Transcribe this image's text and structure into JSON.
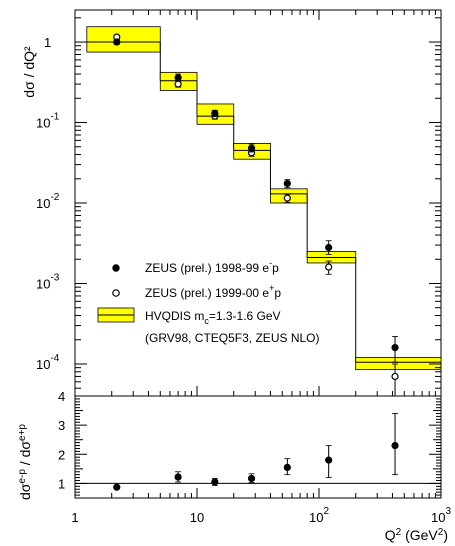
{
  "chart_data": [
    {
      "type": "scatter",
      "title": "",
      "ylabel": "dσ / dQ²",
      "xlabel": "Q² (GeV²)",
      "xscale": "log",
      "yscale": "log",
      "xlim": [
        1,
        1000
      ],
      "ylim": [
        4e-05,
        2.5
      ],
      "y_tick_labels": [
        {
          "value": 1,
          "mantissa": "1",
          "exp": ""
        },
        {
          "value": 0.1,
          "mantissa": "10",
          "exp": "-1"
        },
        {
          "value": 0.01,
          "mantissa": "10",
          "exp": "-2"
        },
        {
          "value": 0.001,
          "mantissa": "10",
          "exp": "-3"
        },
        {
          "value": 0.0001,
          "mantissa": "10",
          "exp": "-4"
        }
      ],
      "legend_position": "lower-left",
      "legend": [
        {
          "marker": "filled-circle",
          "text": "ZEUS (prel.) 1998-99 e",
          "sup": "-",
          "tail": "p"
        },
        {
          "marker": "open-circle",
          "text": "ZEUS (prel.) 1999-00 e",
          "sup": "+",
          "tail": "p"
        },
        {
          "marker": "yellow-band",
          "text": "HVQDIS m",
          "sub": "c",
          "tail": "=1.3-1.6 GeV"
        },
        {
          "marker": "none",
          "text": "(GRV98, CTEQ5F3, ZEUS NLO)"
        }
      ],
      "theory_band": {
        "name": "HVQDIS",
        "bins": [
          {
            "x_lo": 1.25,
            "x_hi": 5,
            "central": 1.0,
            "lo": 0.75,
            "hi": 1.55
          },
          {
            "x_lo": 5,
            "x_hi": 10,
            "central": 0.33,
            "lo": 0.25,
            "hi": 0.42
          },
          {
            "x_lo": 10,
            "x_hi": 20,
            "central": 0.12,
            "lo": 0.095,
            "hi": 0.17
          },
          {
            "x_lo": 20,
            "x_hi": 40,
            "central": 0.045,
            "lo": 0.035,
            "hi": 0.055
          },
          {
            "x_lo": 40,
            "x_hi": 80,
            "central": 0.013,
            "lo": 0.01,
            "hi": 0.015
          },
          {
            "x_lo": 80,
            "x_hi": 200,
            "central": 0.0021,
            "lo": 0.0018,
            "hi": 0.0025
          },
          {
            "x_lo": 200,
            "x_hi": 1000,
            "central": 0.000105,
            "lo": 8.5e-05,
            "hi": 0.00012
          }
        ]
      },
      "series": [
        {
          "name": "ZEUS (prel.) 1998-99 e-p",
          "marker": "filled",
          "points": [
            {
              "x": 2.2,
              "y": 1.0,
              "ylo": 0.94,
              "yhi": 1.06
            },
            {
              "x": 7,
              "y": 0.36,
              "ylo": 0.33,
              "yhi": 0.4
            },
            {
              "x": 14,
              "y": 0.13,
              "ylo": 0.118,
              "yhi": 0.142
            },
            {
              "x": 28,
              "y": 0.048,
              "ylo": 0.043,
              "yhi": 0.054
            },
            {
              "x": 55,
              "y": 0.0175,
              "ylo": 0.0155,
              "yhi": 0.0195
            },
            {
              "x": 120,
              "y": 0.0028,
              "ylo": 0.0023,
              "yhi": 0.0034
            },
            {
              "x": 420,
              "y": 0.00016,
              "ylo": 0.000105,
              "yhi": 0.00022
            }
          ]
        },
        {
          "name": "ZEUS (prel.) 1999-00 e+p",
          "marker": "open",
          "points": [
            {
              "x": 2.2,
              "y": 1.15,
              "ylo": 1.08,
              "yhi": 1.22
            },
            {
              "x": 7,
              "y": 0.3,
              "ylo": 0.275,
              "yhi": 0.325
            },
            {
              "x": 14,
              "y": 0.12,
              "ylo": 0.11,
              "yhi": 0.13
            },
            {
              "x": 28,
              "y": 0.042,
              "ylo": 0.038,
              "yhi": 0.046
            },
            {
              "x": 55,
              "y": 0.0115,
              "ylo": 0.0102,
              "yhi": 0.0128
            },
            {
              "x": 120,
              "y": 0.0016,
              "ylo": 0.0013,
              "yhi": 0.0019
            },
            {
              "x": 420,
              "y": 7e-05,
              "ylo": 4e-05,
              "yhi": 0.0001
            }
          ]
        }
      ]
    },
    {
      "type": "scatter",
      "title": "",
      "ylabel": "dσᵉ⁻ᵖ / dσᵉ⁺ᵖ",
      "ylabel_main": "dσ",
      "ylabel_sup1": "e-p",
      "ylabel_mid": " / dσ",
      "ylabel_sup2": "e+p",
      "xlabel": "Q² (GeV²)",
      "xlabel_main": "Q",
      "xlabel_sup1": "2",
      "xlabel_mid": " (GeV",
      "xlabel_sup2": "2",
      "xlabel_end": ")",
      "xscale": "log",
      "xlim": [
        1,
        1000
      ],
      "ylim": [
        0.5,
        4
      ],
      "x_tick_labels": [
        {
          "value": 1,
          "mantissa": "1",
          "exp": ""
        },
        {
          "value": 10,
          "mantissa": "10",
          "exp": ""
        },
        {
          "value": 100,
          "mantissa": "10",
          "exp": "2"
        },
        {
          "value": 1000,
          "mantissa": "10",
          "exp": "3"
        }
      ],
      "y_tick_labels": [
        "1",
        "2",
        "3",
        "4"
      ],
      "reference_line": 1,
      "series": [
        {
          "name": "ratio",
          "marker": "filled",
          "points": [
            {
              "x": 2.2,
              "y": 0.87,
              "ylo": 0.84,
              "yhi": 0.9
            },
            {
              "x": 7,
              "y": 1.22,
              "ylo": 1.05,
              "yhi": 1.4
            },
            {
              "x": 14,
              "y": 1.05,
              "ylo": 0.93,
              "yhi": 1.17
            },
            {
              "x": 28,
              "y": 1.17,
              "ylo": 1.03,
              "yhi": 1.33
            },
            {
              "x": 55,
              "y": 1.55,
              "ylo": 1.3,
              "yhi": 1.85
            },
            {
              "x": 120,
              "y": 1.8,
              "ylo": 1.2,
              "yhi": 2.3
            },
            {
              "x": 420,
              "y": 2.3,
              "ylo": 1.3,
              "yhi": 3.4
            }
          ]
        }
      ]
    }
  ]
}
